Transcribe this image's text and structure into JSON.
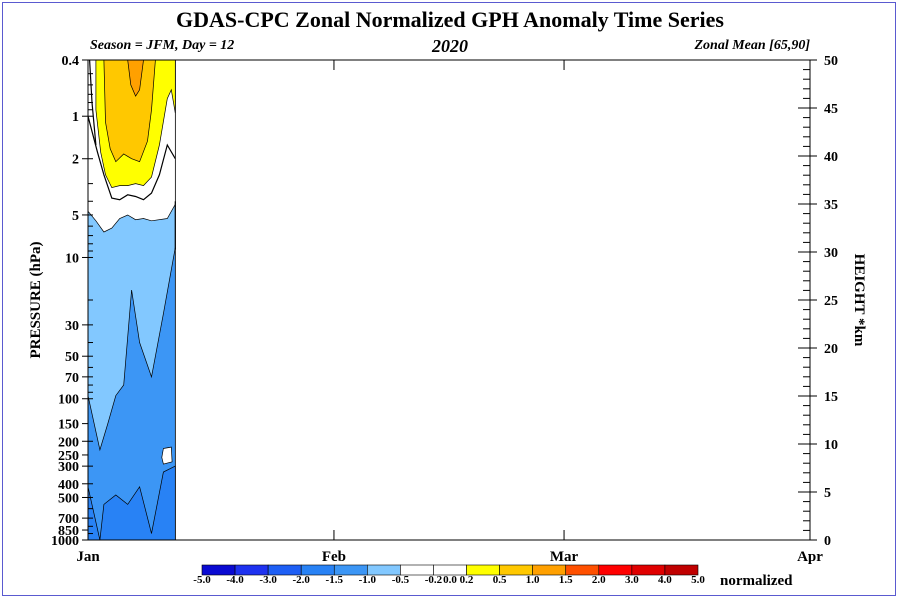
{
  "title": "GDAS-CPC Zonal Normalized GPH Anomaly Time Series",
  "subtitle_left": "Season = JFM, Day =  12",
  "subtitle_center": "2020",
  "subtitle_right": "Zonal Mean [65,90]",
  "colors": {
    "frame": "#5a5ad0",
    "levels": [
      "#0a0ad2",
      "#1e32f0",
      "#1e5ff5",
      "#2882f5",
      "#3c96f5",
      "#82c8ff",
      "#ffffff",
      "#ffffff",
      "#ffff00",
      "#ffc800",
      "#ffa000",
      "#ff5000",
      "#ff0000",
      "#e00000",
      "#c00000"
    ]
  },
  "chart_data": {
    "type": "heatmap",
    "title": "GDAS-CPC Zonal Normalized GPH Anomaly Time Series",
    "xlabel": "",
    "ylabel": "PRESSURE (hPa)",
    "ylabel_right": "HEIGHT *km",
    "x_ticks": [
      "Jan",
      "Feb",
      "Mar",
      "Apr"
    ],
    "x_tick_days": [
      0,
      31,
      60,
      91
    ],
    "x_range_days": [
      0,
      91
    ],
    "data_end_day": 11,
    "y_ticks_pressure": [
      "0.4",
      "1",
      "2",
      "5",
      "10",
      "30",
      "50",
      "70",
      "100",
      "150",
      "200",
      "250",
      "300",
      "400",
      "500",
      "700",
      "850",
      "1000"
    ],
    "y_ticks_height": [
      "0",
      "5",
      "10",
      "15",
      "20",
      "25",
      "30",
      "35",
      "40",
      "45",
      "50"
    ],
    "pressure_range": [
      1000,
      0.4
    ],
    "height_range_km": [
      0,
      50
    ],
    "colorbar": {
      "labels": [
        "-5.0",
        "-4.0",
        "-3.0",
        "-2.0",
        "-1.5",
        "-1.0",
        "-0.5",
        "-0.2",
        "0.0",
        "0.2",
        "0.5",
        "1.0",
        "1.5",
        "2.0",
        "3.0",
        "4.0",
        "5.0"
      ],
      "units": "normalized"
    },
    "regions": [
      {
        "name": "anomaly 1.0 to 1.5",
        "days": [
          4.5,
          7
        ],
        "pressure_hpa": [
          0.4,
          0.8
        ]
      },
      {
        "name": "anomaly 0.5 to 1.0",
        "days": [
          2,
          8.5
        ],
        "pressure_hpa": [
          0.4,
          2.0
        ]
      },
      {
        "name": "anomaly 0.2 to 0.5",
        "days": [
          1,
          11
        ],
        "pressure_hpa": [
          0.4,
          3.5
        ]
      },
      {
        "name": "anomaly -0.2 to 0.2",
        "days": [
          0,
          11
        ],
        "pressure_hpa": [
          0.4,
          6
        ]
      },
      {
        "name": "anomaly -0.5 to -0.2",
        "days": [
          0,
          11
        ],
        "pressure_hpa": [
          5,
          150
        ]
      },
      {
        "name": "anomaly -1.0 to -0.5",
        "days": [
          0,
          11
        ],
        "pressure_hpa": [
          20,
          1000
        ]
      },
      {
        "name": "anomaly -1.5 to -1.0",
        "days": [
          0,
          10
        ],
        "pressure_hpa": [
          400,
          1000
        ]
      }
    ]
  }
}
